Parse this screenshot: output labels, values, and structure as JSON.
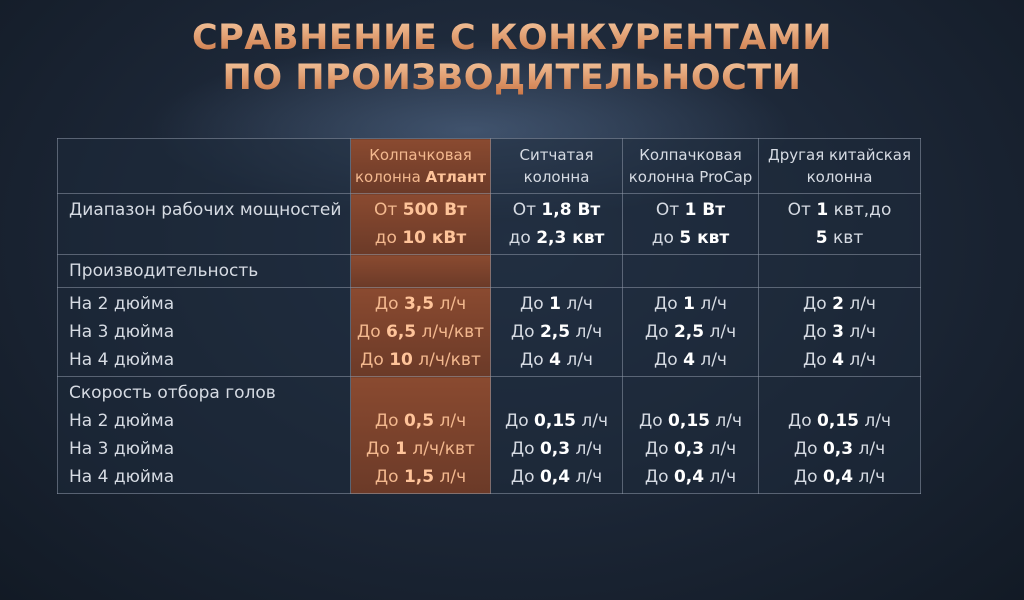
{
  "title": [
    "СРАВНЕНИЕ С КОНКУРЕНТАМИ",
    "ПО ПРОИЗВОДИТЕЛЬНОСТИ"
  ],
  "table": {
    "header": [
      [
        [
          "Колпачковая"
        ],
        [
          "колонна ",
          {
            "bold": "Атлант"
          }
        ]
      ],
      [
        [
          "Ситчатая"
        ],
        [
          "колонна"
        ]
      ],
      [
        [
          "Колпачковая"
        ],
        [
          "колонна ProCap"
        ]
      ],
      [
        [
          "Другая китайская"
        ],
        [
          "колонна"
        ]
      ]
    ],
    "blocks": [
      {
        "label": [
          [
            "Диапазон рабочих мощностей"
          ]
        ],
        "cells": [
          [
            [
              "От ",
              {
                "bold": "500 Вт"
              }
            ],
            [
              "до ",
              {
                "bold": "10 кВт"
              }
            ]
          ],
          [
            [
              "От ",
              {
                "bold": "1,8 Вт"
              }
            ],
            [
              "до ",
              {
                "bold": "2,3 квт"
              }
            ]
          ],
          [
            [
              "От ",
              {
                "bold": "1 Вт"
              }
            ],
            [
              "до ",
              {
                "bold": "5 квт"
              }
            ]
          ],
          [
            [
              "От ",
              {
                "bold": "1"
              },
              " квт,до"
            ],
            [
              {
                "bold": "5"
              },
              " квт"
            ]
          ]
        ]
      },
      {
        "label": [
          [
            "Производительность"
          ]
        ],
        "cells": [
          [],
          [],
          [],
          []
        ]
      },
      {
        "label": [
          [
            "На 2 дюйма"
          ],
          [
            "На 3 дюйма"
          ],
          [
            "На 4 дюйма"
          ]
        ],
        "cells": [
          [
            [
              "До ",
              {
                "bold": "3,5"
              },
              " л/ч"
            ],
            [
              "До ",
              {
                "bold": "6,5"
              },
              " л/ч/квт"
            ],
            [
              "До ",
              {
                "bold": "10"
              },
              " л/ч/квт"
            ]
          ],
          [
            [
              "До ",
              {
                "bold": "1"
              },
              " л/ч"
            ],
            [
              "До ",
              {
                "bold": "2,5"
              },
              " л/ч"
            ],
            [
              "До ",
              {
                "bold": "4"
              },
              " л/ч"
            ]
          ],
          [
            [
              "До ",
              {
                "bold": "1"
              },
              " л/ч"
            ],
            [
              "До ",
              {
                "bold": "2,5"
              },
              " л/ч"
            ],
            [
              "До ",
              {
                "bold": "4"
              },
              " л/ч"
            ]
          ],
          [
            [
              "До ",
              {
                "bold": "2"
              },
              " л/ч"
            ],
            [
              "До ",
              {
                "bold": "3"
              },
              " л/ч"
            ],
            [
              "До ",
              {
                "bold": "4"
              },
              " л/ч"
            ]
          ]
        ]
      },
      {
        "label": [
          [
            "Скорость отбора голов"
          ],
          [
            "На 2 дюйма"
          ],
          [
            "На 3 дюйма"
          ],
          [
            "На 4 дюйма"
          ]
        ],
        "cells": [
          [
            [
              "До ",
              {
                "bold": "0,5"
              },
              " л/ч"
            ],
            [
              "До ",
              {
                "bold": "1"
              },
              " л/ч/квт"
            ],
            [
              "До ",
              {
                "bold": "1,5"
              },
              " л/ч"
            ]
          ],
          [
            [
              "До ",
              {
                "bold": "0,15"
              },
              " л/ч"
            ],
            [
              "До ",
              {
                "bold": "0,3"
              },
              " л/ч"
            ],
            [
              "До ",
              {
                "bold": "0,4"
              },
              " л/ч"
            ]
          ],
          [
            [
              "До ",
              {
                "bold": "0,15"
              },
              " л/ч"
            ],
            [
              "До ",
              {
                "bold": "0,3"
              },
              " л/ч"
            ],
            [
              "До ",
              {
                "bold": "0,4"
              },
              " л/ч"
            ]
          ],
          [
            [
              "До ",
              {
                "bold": "0,15"
              },
              " л/ч"
            ],
            [
              "До ",
              {
                "bold": "0,3"
              },
              " л/ч"
            ],
            [
              "До ",
              {
                "bold": "0,4"
              },
              " л/ч"
            ]
          ]
        ]
      }
    ]
  }
}
